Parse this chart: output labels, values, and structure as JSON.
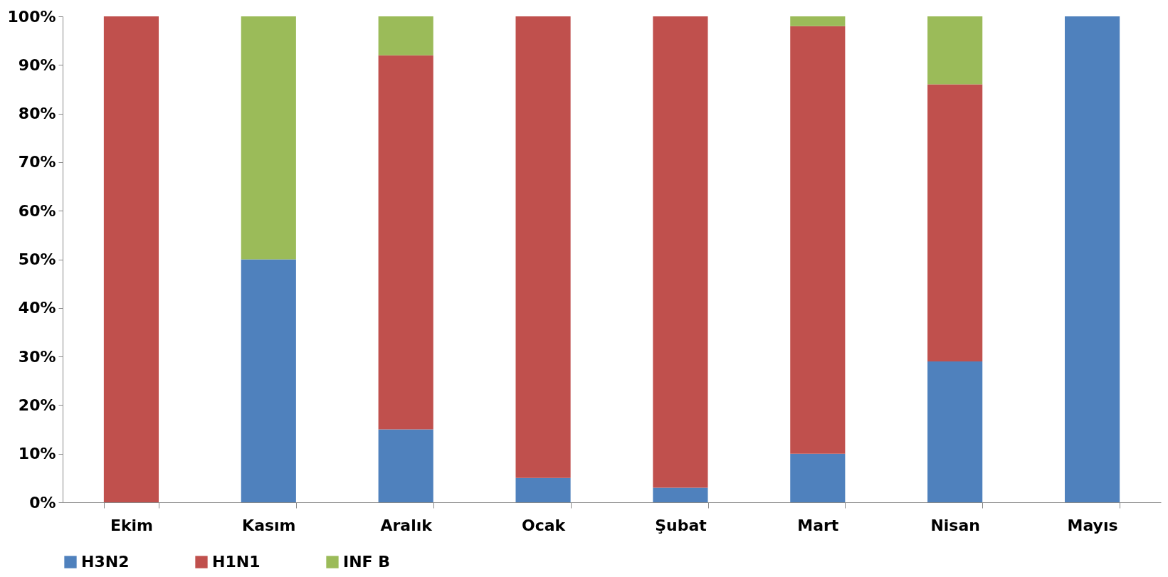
{
  "chart_data": {
    "type": "bar",
    "stacked": true,
    "categories": [
      "Ekim",
      "Kasım",
      "Aralık",
      "Ocak",
      "Şubat",
      "Mart",
      "Nisan",
      "Mayıs"
    ],
    "series": [
      {
        "name": "H3N2",
        "color": "#4f81bd",
        "values": [
          0,
          50,
          15,
          5,
          3,
          10,
          29,
          100
        ]
      },
      {
        "name": "H1N1",
        "color": "#c0504d",
        "values": [
          100,
          0,
          77,
          95,
          97,
          88,
          57,
          0
        ]
      },
      {
        "name": "INF B",
        "color": "#9bbb59",
        "values": [
          0,
          50,
          8,
          0,
          0,
          2,
          14,
          0
        ]
      }
    ],
    "ylim": [
      0,
      100
    ],
    "yticks": [
      {
        "value": 0,
        "label": "0%"
      },
      {
        "value": 10,
        "label": "10%"
      },
      {
        "value": 20,
        "label": "20%"
      },
      {
        "value": 30,
        "label": "30%"
      },
      {
        "value": 40,
        "label": "40%"
      },
      {
        "value": 50,
        "label": "50%"
      },
      {
        "value": 60,
        "label": "60%"
      },
      {
        "value": 70,
        "label": "70%"
      },
      {
        "value": 80,
        "label": "80%"
      },
      {
        "value": 90,
        "label": "90%"
      },
      {
        "value": 100,
        "label": "100%"
      }
    ],
    "grid": false,
    "legend": "bottom"
  }
}
